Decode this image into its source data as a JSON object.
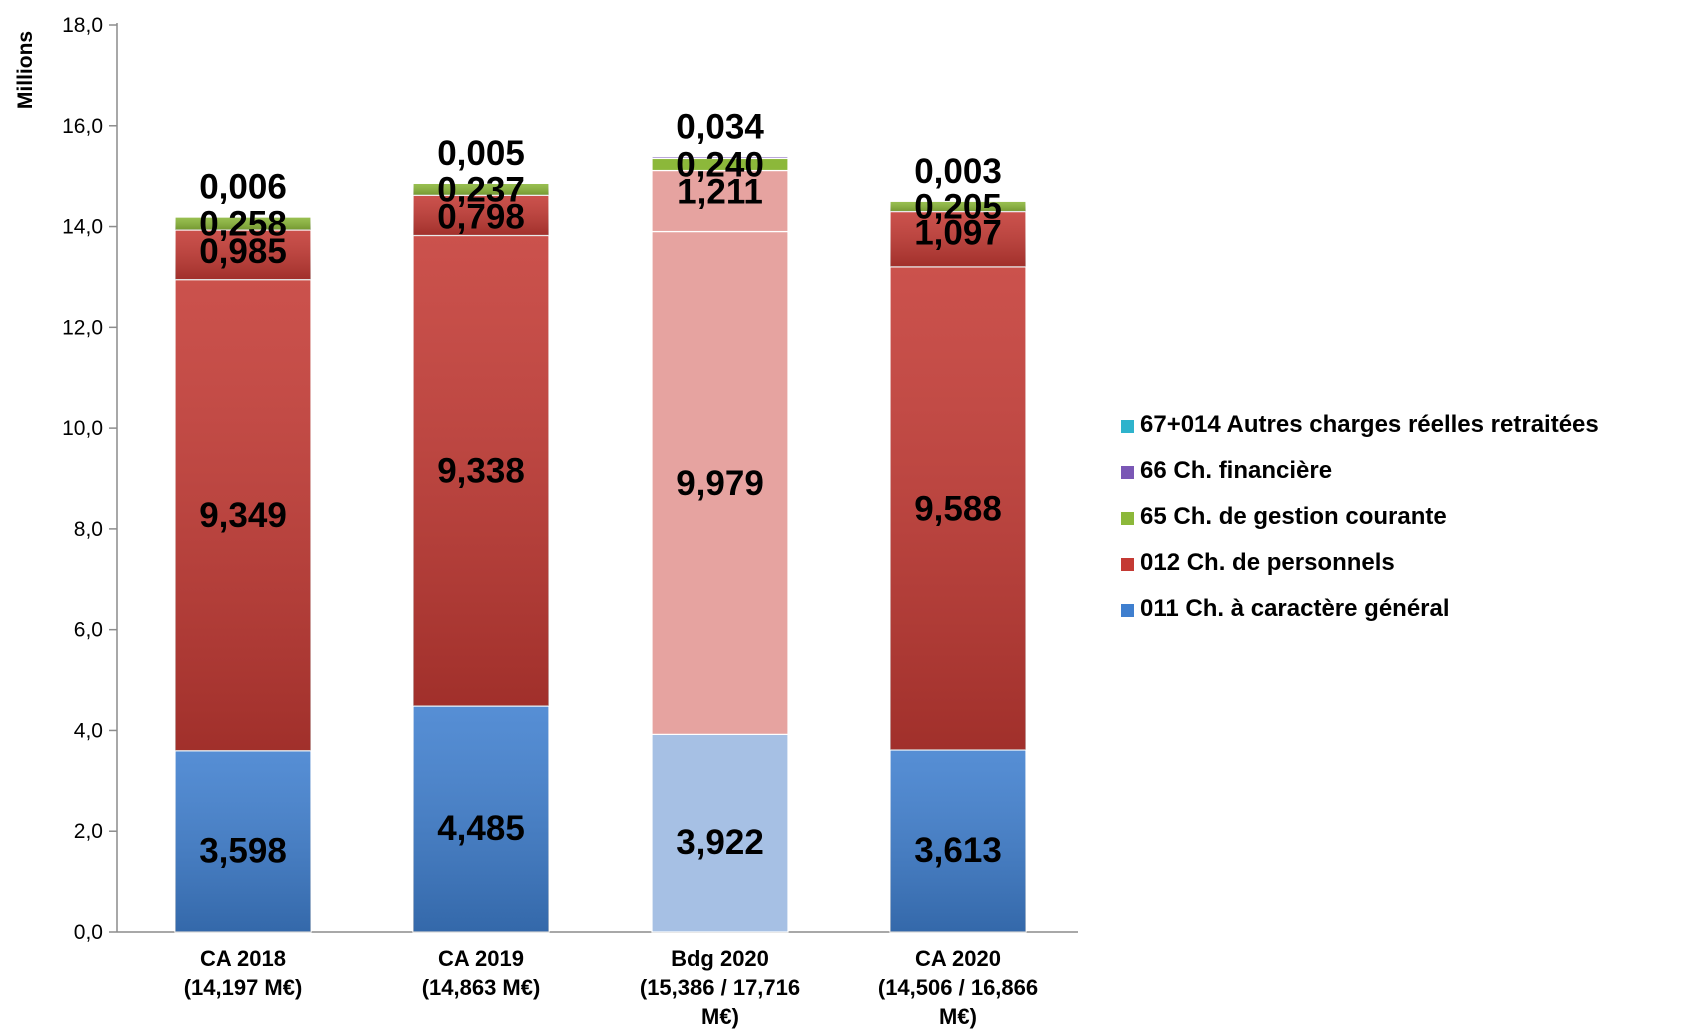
{
  "chart_data": {
    "type": "bar",
    "stacked": true,
    "ylabel": "Millions",
    "ylim": [
      0,
      18
    ],
    "yticks": [
      "0,0",
      "2,0",
      "4,0",
      "6,0",
      "8,0",
      "10,0",
      "12,0",
      "14,0",
      "16,0",
      "18,0"
    ],
    "categories": [
      [
        "CA 2018",
        "(14,197 M€)"
      ],
      [
        "CA 2019",
        "(14,863 M€)"
      ],
      [
        "Bdg 2020",
        "(15,386 / 17,716",
        "M€)"
      ],
      [
        "CA 2020",
        "(14,506 / 16,866",
        "M€)"
      ]
    ],
    "series": [
      {
        "name": "011 Ch. à caractère général",
        "values": [
          3.598,
          4.485,
          3.922,
          3.613
        ],
        "labels": [
          "3,598",
          "4,485",
          "3,922",
          "3,613"
        ],
        "color": "#3f7fcf"
      },
      {
        "name": "012 Ch. de personnels",
        "values": [
          9.349,
          9.338,
          9.979,
          9.588
        ],
        "labels": [
          "9,349",
          "9,338",
          "9,979",
          "9,588"
        ],
        "color": "#c43a34"
      },
      {
        "name": "012 Ch. de personnels",
        "values": [
          0.985,
          0.798,
          1.211,
          1.097
        ],
        "labels": [
          "0,985",
          "0,798",
          "1,211",
          "1,097"
        ],
        "color": "#c43a34",
        "no_legend": true
      },
      {
        "name": "65  Ch. de gestion courante",
        "values": [
          0.258,
          0.237,
          0.24,
          0.205
        ],
        "labels": [
          "0,258",
          "0,237",
          "0,240",
          "0,205"
        ],
        "color": "#8cb83a"
      },
      {
        "name": "66  Ch. financière",
        "values": [
          0.006,
          0.005,
          0.034,
          0.003
        ],
        "labels": [
          "0,006",
          "0,005",
          "0,034",
          "0,003"
        ],
        "color": "#7a57b5"
      },
      {
        "name": "67+014 Autres charges réelles retraitées",
        "values": [
          0,
          0,
          0,
          0
        ],
        "labels": [
          "",
          "",
          "",
          ""
        ],
        "color": "#2eb3cc"
      }
    ],
    "faded_category_index": 2,
    "faded_colors": {
      "#3f7fcf": "#a6c0e4",
      "#c43a34": "#e6a3a0"
    },
    "legend": [
      {
        "label": "67+014 Autres charges réelles retraitées",
        "color": "#2eb3cc"
      },
      {
        "label": "66  Ch. financière",
        "color": "#7a57b5"
      },
      {
        "label": "65  Ch. de gestion courante",
        "color": "#8cb83a"
      },
      {
        "label": "012 Ch. de personnels",
        "color": "#c43a34"
      },
      {
        "label": "011 Ch. à caractère général",
        "color": "#3f7fcf"
      }
    ],
    "legend_position": "right",
    "grid": false
  }
}
